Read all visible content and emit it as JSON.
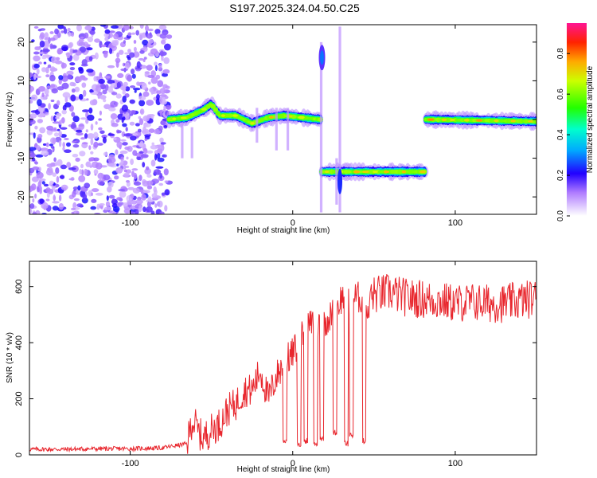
{
  "title": "S197.2025.324.04.50.C25",
  "chart_data": [
    {
      "type": "heatmap",
      "xlabel": "Height of straight line (km)",
      "ylabel": "Frequency (Hz)",
      "xlim": [
        -162,
        150
      ],
      "ylim": [
        -24.5,
        24.5
      ],
      "xticks": [
        -100,
        0,
        100
      ],
      "xtick_labels": [
        "-100",
        "0",
        "100"
      ],
      "yticks": [
        -20,
        -10,
        0,
        10,
        20
      ],
      "ytick_labels": [
        "-20",
        "-10",
        "0",
        "10",
        "20"
      ],
      "colorbar": {
        "label": "Normalized spectral amplitude",
        "range": [
          0,
          0.95
        ],
        "ticks": [
          0,
          0.2,
          0.4,
          0.6,
          0.8
        ],
        "tick_labels": [
          "0.0",
          "0.2",
          "0.4",
          "0.6",
          "0.8"
        ]
      },
      "features": [
        {
          "name": "broadband-noise",
          "x_range": [
            -162,
            -76
          ],
          "freq_range": [
            -24.5,
            24.5
          ],
          "amplitude": 0.2
        },
        {
          "name": "ridge-1",
          "points": [
            [
              -76,
              0
            ],
            [
              -65,
              0.5
            ],
            [
              -55,
              2.5
            ],
            [
              -50,
              4
            ],
            [
              -45,
              1
            ],
            [
              -35,
              1
            ],
            [
              -25,
              -1
            ],
            [
              -15,
              0.5
            ],
            [
              -5,
              1
            ],
            [
              10,
              0.3
            ],
            [
              17,
              0
            ]
          ],
          "amplitude": 0.8
        },
        {
          "name": "ridge-2",
          "points": [
            [
              18,
              -13.5
            ],
            [
              40,
              -13.5
            ],
            [
              60,
              -13.5
            ],
            [
              82,
              -13.5
            ]
          ],
          "amplitude": 0.8
        },
        {
          "name": "ridge-3",
          "points": [
            [
              82,
              0
            ],
            [
              150,
              -0.5
            ]
          ],
          "amplitude": 0.85
        },
        {
          "name": "spike-1",
          "x": 18,
          "freq": 16,
          "amplitude": 0.5
        }
      ]
    },
    {
      "type": "line",
      "xlabel": "Height of straight line (km)",
      "ylabel": "SNR (10 * v/v)",
      "xlim": [
        -162,
        150
      ],
      "ylim": [
        0,
        690
      ],
      "xticks": [
        -100,
        0,
        100
      ],
      "xtick_labels": [
        "-100",
        "0",
        "100"
      ],
      "yticks": [
        0,
        200,
        400,
        600
      ],
      "ytick_labels": [
        "0",
        "200",
        "400",
        "600"
      ],
      "series": [
        {
          "name": "SNR",
          "color": "#e8262d",
          "x": [
            -162,
            -140,
            -120,
            -100,
            -80,
            -65,
            -62,
            -60,
            -58,
            -55,
            -50,
            -45,
            -40,
            -35,
            -30,
            -25,
            -20,
            -15,
            -10,
            -5,
            0,
            5,
            10,
            15,
            20,
            25,
            30,
            35,
            40,
            45,
            50,
            60,
            70,
            80,
            90,
            100,
            110,
            120,
            130,
            140,
            150
          ],
          "y": [
            20,
            20,
            22,
            22,
            25,
            40,
            120,
            110,
            80,
            60,
            90,
            110,
            160,
            180,
            230,
            230,
            300,
            200,
            280,
            330,
            360,
            420,
            460,
            470,
            480,
            500,
            560,
            560,
            560,
            560,
            570,
            580,
            560,
            555,
            550,
            540,
            545,
            540,
            540,
            550,
            560
          ]
        }
      ]
    }
  ],
  "colors": {
    "line": "#e8262d",
    "axis": "#000000",
    "background": "#ffffff"
  }
}
